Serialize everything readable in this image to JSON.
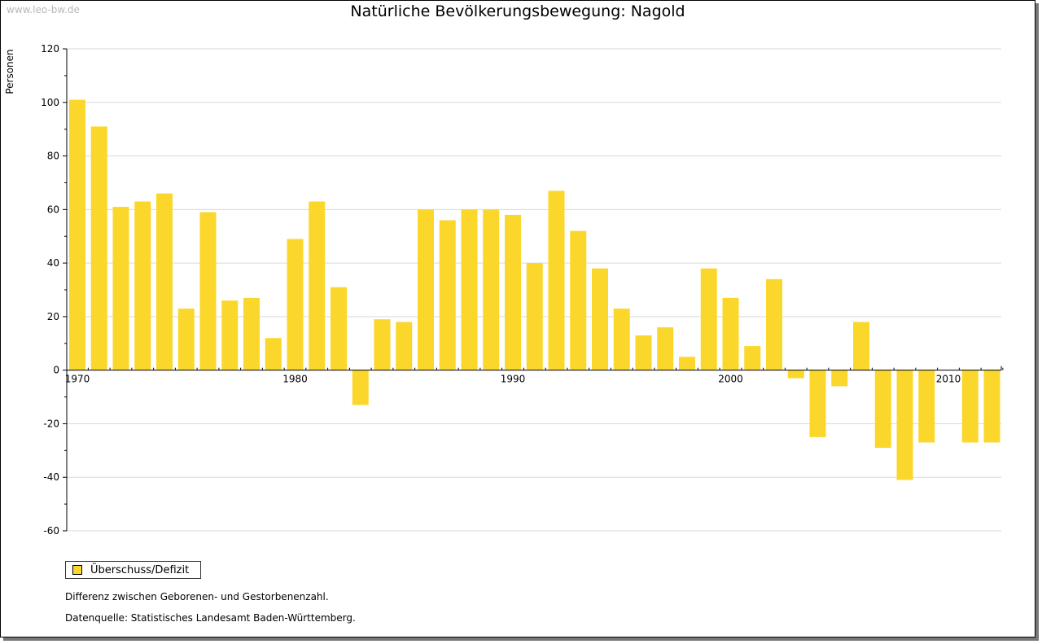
{
  "watermark": "www.leo-bw.de",
  "notes": {
    "description": "Differenz zwischen Geborenen- und Gestorbenenzahl.",
    "source": "Datenquelle: Statistisches Landesamt Baden-Württemberg."
  },
  "chart_data": {
    "type": "bar",
    "title": "Natürliche Bevölkerungsbewegung: Nagold",
    "xlabel": "",
    "ylabel": "Personen",
    "ylim": [
      -60,
      120
    ],
    "yticks": [
      -60,
      -40,
      -20,
      0,
      20,
      40,
      60,
      80,
      100,
      120
    ],
    "xtick_labels": [
      "1970",
      "1980",
      "1990",
      "2000",
      "2010"
    ],
    "grid": true,
    "legend_position": "bottom-left",
    "bar_color": "#FCD72B",
    "categories": [
      1970,
      1971,
      1972,
      1973,
      1974,
      1975,
      1976,
      1977,
      1978,
      1979,
      1980,
      1981,
      1982,
      1983,
      1984,
      1985,
      1986,
      1987,
      1988,
      1989,
      1990,
      1991,
      1992,
      1993,
      1994,
      1995,
      1996,
      1997,
      1998,
      1999,
      2000,
      2001,
      2002,
      2003,
      2004,
      2005,
      2006,
      2007,
      2008,
      2009,
      2010,
      2011,
      2012
    ],
    "series": [
      {
        "name": "Überschuss/Defizit",
        "values": [
          101,
          91,
          61,
          63,
          66,
          23,
          59,
          26,
          27,
          12,
          49,
          63,
          31,
          -13,
          19,
          18,
          60,
          56,
          60,
          60,
          58,
          40,
          67,
          52,
          38,
          23,
          13,
          16,
          5,
          38,
          27,
          9,
          34,
          -3,
          -25,
          -6,
          18,
          -29,
          -41,
          -27,
          0,
          -27,
          -27
        ]
      }
    ]
  }
}
